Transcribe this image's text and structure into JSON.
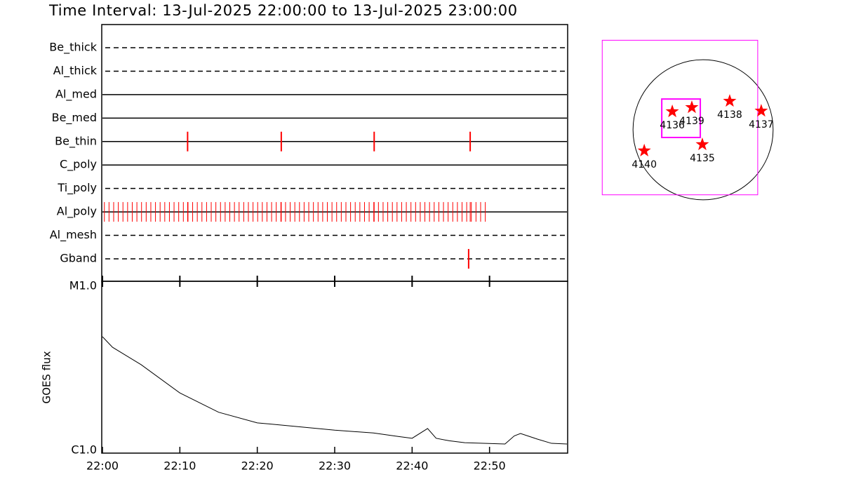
{
  "chart_data": [
    {
      "type": "timeline",
      "title": "Time Interval: 13-Jul-2025 22:00:00 to 13-Jul-2025 23:00:00",
      "categories": [
        "Be_thick",
        "Al_thick",
        "Al_med",
        "Be_med",
        "Be_thin",
        "C_poly",
        "Ti_poly",
        "Al_poly",
        "Al_mesh",
        "Gband"
      ],
      "line_styles": [
        "dashed",
        "dashed",
        "solid",
        "solid",
        "solid",
        "solid",
        "dashed",
        "solid",
        "dashed",
        "dashed"
      ],
      "color": "#ff0000",
      "xlim": [
        0,
        60
      ],
      "events": [
        [],
        [],
        [],
        [],
        [
          11.0,
          23.1,
          35.1,
          47.5
        ],
        [],
        [],
        [
          0.25,
          0.85,
          1.45,
          2.05,
          2.65,
          3.25,
          3.85,
          4.45,
          5.05,
          5.65,
          6.25,
          6.85,
          7.45,
          8.05,
          8.65,
          9.25,
          9.85,
          10.45,
          11.05,
          11.65,
          12.25,
          12.85,
          13.45,
          14.05,
          14.65,
          15.25,
          15.85,
          16.45,
          17.05,
          17.65,
          18.25,
          18.85,
          19.45,
          20.05,
          20.65,
          21.25,
          21.85,
          22.45,
          23.05,
          23.65,
          24.25,
          24.85,
          25.45,
          26.05,
          26.65,
          27.25,
          27.85,
          28.45,
          29.05,
          29.65,
          30.25,
          30.85,
          31.45,
          32.05,
          32.65,
          33.25,
          33.85,
          34.45,
          35.05,
          35.65,
          36.25,
          36.85,
          37.45,
          38.05,
          38.65,
          39.25,
          39.85,
          40.45,
          41.05,
          41.65,
          42.25,
          42.85,
          43.45,
          44.05,
          44.65,
          45.25,
          45.85,
          46.45,
          47.05,
          47.65,
          48.25,
          48.85,
          49.45,
          11.0,
          23.1,
          35.1,
          47.5
        ],
        [],
        [
          47.3
        ]
      ]
    },
    {
      "type": "line",
      "ylabel": "GOES flux",
      "log_y": true,
      "color": "#000000",
      "xlim": [
        0,
        60
      ],
      "xticks": [
        {
          "value": 0,
          "label": "22:00"
        },
        {
          "value": 10,
          "label": "22:10"
        },
        {
          "value": 20,
          "label": "22:20"
        },
        {
          "value": 30,
          "label": "22:30"
        },
        {
          "value": 40,
          "label": "22:40"
        },
        {
          "value": 50,
          "label": "22:50"
        }
      ],
      "ylim": [
        1e-06,
        1e-05
      ],
      "yticks": [
        {
          "value": 1e-06,
          "label": "C1.0"
        },
        {
          "value": 1e-05,
          "label": "M1.0"
        }
      ],
      "x": [
        0,
        1.3,
        5,
        10,
        15,
        20,
        25,
        30,
        35,
        38.2,
        40,
        42,
        43.1,
        44.8,
        46.8,
        52,
        53.2,
        54,
        56.1,
        58,
        60
      ],
      "values": [
        4.76e-06,
        4.13e-06,
        3.27e-06,
        2.24e-06,
        1.73e-06,
        1.5e-06,
        1.43e-06,
        1.36e-06,
        1.31e-06,
        1.25e-06,
        1.22e-06,
        1.39e-06,
        1.22e-06,
        1.18e-06,
        1.15e-06,
        1.13e-06,
        1.26e-06,
        1.3e-06,
        1.21e-06,
        1.14e-06,
        1.13e-06
      ]
    },
    {
      "type": "scatter",
      "xlim": [
        -1500,
        1500
      ],
      "ylim": [
        -1300,
        1300
      ],
      "disk_radius": 960,
      "marker_color": "#ff0000",
      "box_color": "#ff00ff",
      "boxes": [
        {
          "x": [
            -1382,
            749
          ],
          "y": [
            -893,
            1229
          ]
        },
        {
          "x": [
            -566,
            -38
          ],
          "y": [
            -106,
            422
          ]
        }
      ],
      "labels": [
        "4136",
        "4139",
        "4138",
        "4137",
        "4140",
        "4135"
      ],
      "x": [
        -422,
        -154,
        365,
        797,
        -806,
        -10
      ],
      "y": [
        250,
        307,
        394,
        259,
        -288,
        -202
      ]
    }
  ]
}
